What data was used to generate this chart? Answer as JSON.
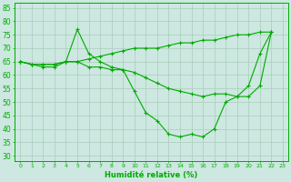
{
  "xlabel": "Humidité relative (%)",
  "background_color": "#cce8e0",
  "grid_color": "#aaccbb",
  "line_color": "#00aa00",
  "xlim": [
    -0.5,
    23.5
  ],
  "ylim": [
    28,
    87
  ],
  "yticks": [
    30,
    35,
    40,
    45,
    50,
    55,
    60,
    65,
    70,
    75,
    80,
    85
  ],
  "xticks": [
    0,
    1,
    2,
    3,
    4,
    5,
    6,
    7,
    8,
    9,
    10,
    11,
    12,
    13,
    14,
    15,
    16,
    17,
    18,
    19,
    20,
    21,
    22,
    23
  ],
  "line1_x": [
    0,
    1,
    2,
    3,
    4,
    5,
    6,
    7,
    8,
    9,
    10,
    11,
    12,
    13,
    14,
    15,
    16,
    17,
    18,
    19,
    20,
    21,
    22
  ],
  "line1_y": [
    65,
    64,
    64,
    64,
    65,
    77,
    68,
    65,
    63,
    62,
    54,
    46,
    43,
    38,
    37,
    38,
    37,
    40,
    50,
    52,
    56,
    68,
    76
  ],
  "line2_x": [
    0,
    1,
    2,
    3,
    4,
    5,
    6,
    7,
    8,
    9,
    10,
    11,
    12,
    13,
    14,
    15,
    16,
    17,
    18,
    19,
    20,
    21,
    22
  ],
  "line2_y": [
    65,
    64,
    64,
    64,
    65,
    65,
    66,
    67,
    68,
    69,
    70,
    70,
    70,
    71,
    72,
    72,
    73,
    73,
    74,
    75,
    75,
    76,
    76
  ],
  "line3_x": [
    0,
    1,
    2,
    3,
    4,
    5,
    6,
    7,
    8,
    9,
    10,
    11,
    12,
    13,
    14,
    15,
    16,
    17,
    18,
    19,
    20,
    21,
    22
  ],
  "line3_y": [
    65,
    64,
    63,
    63,
    65,
    65,
    63,
    63,
    62,
    62,
    61,
    59,
    57,
    55,
    54,
    53,
    52,
    53,
    53,
    52,
    52,
    56,
    76
  ]
}
